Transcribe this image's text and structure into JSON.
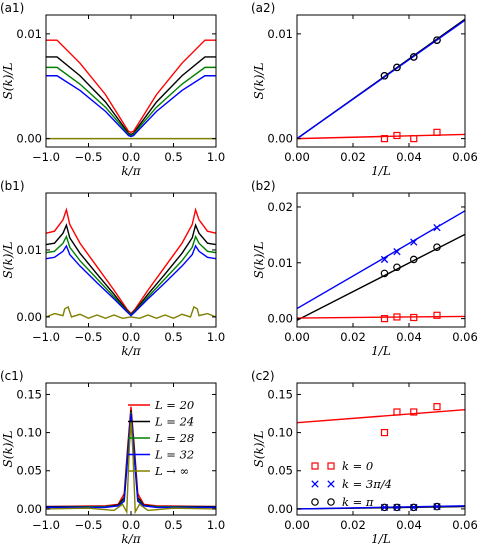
{
  "chart_data": [
    {
      "panel": "(a1)",
      "type": "line",
      "xlabel": "k/π",
      "ylabel": "S(k)/L",
      "xlim": [
        -1.0,
        1.0
      ],
      "ylim": [
        -0.0008,
        0.0118
      ],
      "xticks": [
        -1.0,
        -0.5,
        0.0,
        0.5,
        1.0
      ],
      "xticklabels": [
        "−1.0",
        "−0.5",
        "0.0",
        "0.5",
        "1.0"
      ],
      "yticks": [
        0.0,
        0.01
      ],
      "yticklabels": [
        "0.00",
        "0.01"
      ],
      "series": [
        {
          "color": "#ff0000",
          "x": [
            -1.0,
            -0.87,
            -0.6,
            -0.3,
            -0.1,
            -0.03,
            0.0,
            0.03,
            0.1,
            0.3,
            0.6,
            0.87,
            1.0
          ],
          "y": [
            0.0094,
            0.0094,
            0.0072,
            0.0042,
            0.0016,
            0.0007,
            0.0006,
            0.0007,
            0.0016,
            0.0042,
            0.0072,
            0.0094,
            0.0094
          ]
        },
        {
          "color": "#000000",
          "x": [
            -1.0,
            -0.87,
            -0.6,
            -0.3,
            -0.1,
            -0.03,
            0.0,
            0.03,
            0.1,
            0.3,
            0.6,
            0.87,
            1.0
          ],
          "y": [
            0.0078,
            0.0078,
            0.006,
            0.0035,
            0.0013,
            0.0005,
            0.0004,
            0.0005,
            0.0013,
            0.0035,
            0.006,
            0.0078,
            0.0078
          ]
        },
        {
          "color": "#008000",
          "x": [
            -1.0,
            -0.87,
            -0.6,
            -0.3,
            -0.1,
            -0.03,
            0.0,
            0.03,
            0.1,
            0.3,
            0.6,
            0.87,
            1.0
          ],
          "y": [
            0.0068,
            0.0068,
            0.0052,
            0.003,
            0.0011,
            0.0004,
            0.0003,
            0.0004,
            0.0011,
            0.003,
            0.0052,
            0.0068,
            0.0068
          ]
        },
        {
          "color": "#0000ff",
          "x": [
            -1.0,
            -0.87,
            -0.6,
            -0.3,
            -0.1,
            -0.03,
            0.0,
            0.03,
            0.1,
            0.3,
            0.6,
            0.87,
            1.0
          ],
          "y": [
            0.006,
            0.006,
            0.0046,
            0.0026,
            0.0009,
            0.0003,
            0.0002,
            0.0003,
            0.0009,
            0.0026,
            0.0046,
            0.006,
            0.006
          ]
        },
        {
          "color": "#808000",
          "x": [
            -1.0,
            1.0
          ],
          "y": [
            0.0,
            0.0
          ]
        }
      ]
    },
    {
      "panel": "(a2)",
      "type": "scatter",
      "xlabel": "1/L",
      "ylabel": "S(k)/L",
      "xlim": [
        0.0,
        0.06
      ],
      "ylim": [
        -0.0008,
        0.0118
      ],
      "xticks": [
        0.0,
        0.02,
        0.04,
        0.06
      ],
      "xticklabels": [
        "0.00",
        "0.02",
        "0.04",
        "0.06"
      ],
      "yticks": [
        0.0,
        0.01
      ],
      "yticklabels": [
        "0.00",
        "0.01"
      ],
      "lines": [
        {
          "color": "#000000",
          "x": [
            0.0,
            0.06
          ],
          "y": [
            0.0,
            0.0114
          ]
        },
        {
          "color": "#0000ff",
          "x": [
            0.0,
            0.06
          ],
          "y": [
            0.0,
            0.0113
          ]
        },
        {
          "color": "#ff0000",
          "x": [
            0.0,
            0.06
          ],
          "y": [
            0.0,
            0.0004
          ]
        }
      ],
      "markers": [
        {
          "shape": "circle",
          "color": "#0000ff",
          "x": [
            0.03125,
            0.0357,
            0.0417,
            0.05
          ],
          "y": [
            0.006,
            0.0068,
            0.0078,
            0.0094
          ]
        },
        {
          "shape": "circle",
          "color": "#000000",
          "x": [
            0.03125,
            0.0357,
            0.0417,
            0.05
          ],
          "y": [
            0.006,
            0.0068,
            0.0078,
            0.0094
          ]
        },
        {
          "shape": "square",
          "color": "#ff0000",
          "x": [
            0.03125,
            0.0357,
            0.0417,
            0.05
          ],
          "y": [
            0.0,
            0.0003,
            0.0,
            0.0006
          ]
        }
      ]
    },
    {
      "panel": "(b1)",
      "type": "line",
      "xlabel": "k/π",
      "ylabel": "S(k)/L",
      "xlim": [
        -1.0,
        1.0
      ],
      "ylim": [
        -0.0015,
        0.0185
      ],
      "xticks": [
        -1.0,
        -0.5,
        0.0,
        0.5,
        1.0
      ],
      "xticklabels": [
        "−1.0",
        "−0.5",
        "0.0",
        "0.5",
        "1.0"
      ],
      "yticks": [
        0.0,
        0.01
      ],
      "yticklabels": [
        "0.00",
        "0.01"
      ],
      "series": [
        {
          "color": "#ff0000",
          "x": [
            -1.0,
            -0.9,
            -0.8,
            -0.76,
            -0.72,
            -0.6,
            -0.4,
            -0.2,
            -0.05,
            0.0,
            0.05,
            0.2,
            0.4,
            0.6,
            0.72,
            0.76,
            0.8,
            0.9,
            1.0
          ],
          "y": [
            0.0125,
            0.0128,
            0.0145,
            0.016,
            0.0138,
            0.011,
            0.0075,
            0.004,
            0.0012,
            0.0005,
            0.0012,
            0.004,
            0.0075,
            0.011,
            0.0138,
            0.016,
            0.0145,
            0.0128,
            0.0125
          ]
        },
        {
          "color": "#000000",
          "x": [
            -1.0,
            -0.9,
            -0.8,
            -0.76,
            -0.72,
            -0.6,
            -0.4,
            -0.2,
            -0.05,
            0.0,
            0.05,
            0.2,
            0.4,
            0.6,
            0.72,
            0.76,
            0.8,
            0.9,
            1.0
          ],
          "y": [
            0.0108,
            0.011,
            0.0125,
            0.0137,
            0.0118,
            0.0095,
            0.0064,
            0.0034,
            0.001,
            0.0004,
            0.001,
            0.0034,
            0.0064,
            0.0095,
            0.0118,
            0.0137,
            0.0125,
            0.011,
            0.0108
          ]
        },
        {
          "color": "#008000",
          "x": [
            -1.0,
            -0.9,
            -0.8,
            -0.76,
            -0.72,
            -0.6,
            -0.4,
            -0.2,
            -0.05,
            0.0,
            0.05,
            0.2,
            0.4,
            0.6,
            0.72,
            0.76,
            0.8,
            0.9,
            1.0
          ],
          "y": [
            0.0096,
            0.0098,
            0.011,
            0.012,
            0.0104,
            0.0084,
            0.0057,
            0.003,
            0.0009,
            0.0003,
            0.0009,
            0.003,
            0.0057,
            0.0084,
            0.0104,
            0.012,
            0.011,
            0.0098,
            0.0096
          ]
        },
        {
          "color": "#0000ff",
          "x": [
            -1.0,
            -0.9,
            -0.8,
            -0.76,
            -0.72,
            -0.6,
            -0.4,
            -0.2,
            -0.05,
            0.0,
            0.05,
            0.2,
            0.4,
            0.6,
            0.72,
            0.76,
            0.8,
            0.9,
            1.0
          ],
          "y": [
            0.0087,
            0.0089,
            0.0098,
            0.0106,
            0.0093,
            0.0076,
            0.0051,
            0.0027,
            0.0008,
            0.0002,
            0.0008,
            0.0027,
            0.0051,
            0.0076,
            0.0093,
            0.0106,
            0.0098,
            0.0089,
            0.0087
          ]
        },
        {
          "color": "#808000",
          "x": [
            -1.0,
            -0.9,
            -0.8,
            -0.78,
            -0.74,
            -0.7,
            -0.6,
            -0.5,
            -0.4,
            -0.3,
            -0.2,
            -0.1,
            0.0,
            0.1,
            0.2,
            0.3,
            0.4,
            0.5,
            0.6,
            0.7,
            0.74,
            0.78,
            0.8,
            0.9,
            1.0
          ],
          "y": [
            0.0,
            0.0005,
            0.0002,
            0.0012,
            0.0015,
            0.0,
            0.0004,
            -0.0002,
            0.0003,
            -0.0002,
            0.0003,
            -0.0002,
            0.0,
            -0.0002,
            0.0003,
            -0.0002,
            0.0003,
            -0.0002,
            0.0004,
            0.0,
            0.0015,
            0.0012,
            0.0002,
            0.0005,
            0.0
          ]
        }
      ]
    },
    {
      "panel": "(b2)",
      "type": "scatter",
      "xlabel": "1/L",
      "ylabel": "S(k)/L",
      "xlim": [
        0.0,
        0.06
      ],
      "ylim": [
        -0.0015,
        0.0225
      ],
      "xticks": [
        0.0,
        0.02,
        0.04,
        0.06
      ],
      "xticklabels": [
        "0.00",
        "0.02",
        "0.04",
        "0.06"
      ],
      "yticks": [
        0.0,
        0.01,
        0.02
      ],
      "yticklabels": [
        "0.00",
        "0.01",
        "0.02"
      ],
      "lines": [
        {
          "color": "#0000ff",
          "x": [
            0.0,
            0.06
          ],
          "y": [
            0.0018,
            0.0193
          ]
        },
        {
          "color": "#000000",
          "x": [
            0.0,
            0.06
          ],
          "y": [
            -0.0003,
            0.0151
          ]
        },
        {
          "color": "#ff0000",
          "x": [
            0.0,
            0.06
          ],
          "y": [
            0.0001,
            0.0004
          ]
        }
      ],
      "markers": [
        {
          "shape": "x",
          "color": "#0000ff",
          "x": [
            0.03125,
            0.0357,
            0.0417,
            0.05
          ],
          "y": [
            0.0106,
            0.012,
            0.0137,
            0.0163
          ]
        },
        {
          "shape": "circle",
          "color": "#000000",
          "x": [
            0.03125,
            0.0357,
            0.0417,
            0.05
          ],
          "y": [
            0.0081,
            0.0092,
            0.0106,
            0.0128
          ]
        },
        {
          "shape": "square",
          "color": "#ff0000",
          "x": [
            0.03125,
            0.0357,
            0.0417,
            0.05
          ],
          "y": [
            0.0,
            0.0003,
            0.0002,
            0.0006
          ]
        }
      ]
    },
    {
      "panel": "(c1)",
      "type": "line",
      "xlabel": "k/π",
      "ylabel": "S(k)/L",
      "xlim": [
        -1.0,
        1.0
      ],
      "ylim": [
        -0.008,
        0.165
      ],
      "xticks": [
        -1.0,
        -0.5,
        0.0,
        0.5,
        1.0
      ],
      "xticklabels": [
        "−1.0",
        "−0.5",
        "0.0",
        "0.5",
        "1.0"
      ],
      "yticks": [
        0.0,
        0.05,
        0.1,
        0.15
      ],
      "yticklabels": [
        "0.00",
        "0.05",
        "0.10",
        "0.15"
      ],
      "legend": {
        "position": "right",
        "entries": [
          "L = 20",
          "L = 24",
          "L = 28",
          "L = 32",
          "L → ∞"
        ]
      },
      "series": [
        {
          "name": "L = 20",
          "color": "#ff0000",
          "x": [
            -1.0,
            -0.3,
            -0.15,
            -0.08,
            -0.04,
            0.0,
            0.04,
            0.08,
            0.15,
            0.3,
            1.0
          ],
          "y": [
            0.003,
            0.004,
            0.006,
            0.02,
            0.08,
            0.134,
            0.08,
            0.02,
            0.006,
            0.004,
            0.003
          ]
        },
        {
          "name": "L = 24",
          "color": "#000000",
          "x": [
            -1.0,
            -0.3,
            -0.15,
            -0.08,
            -0.04,
            0.0,
            0.04,
            0.08,
            0.15,
            0.3,
            1.0
          ],
          "y": [
            0.003,
            0.003,
            0.005,
            0.015,
            0.075,
            0.129,
            0.075,
            0.015,
            0.005,
            0.003,
            0.003
          ]
        },
        {
          "name": "L = 28",
          "color": "#008000",
          "x": [
            -1.0,
            -0.3,
            -0.15,
            -0.08,
            -0.04,
            0.0,
            0.04,
            0.08,
            0.15,
            0.3,
            1.0
          ],
          "y": [
            0.002,
            0.003,
            0.004,
            0.012,
            0.07,
            0.127,
            0.07,
            0.012,
            0.004,
            0.003,
            0.002
          ]
        },
        {
          "name": "L = 32",
          "color": "#0000ff",
          "x": [
            -1.0,
            -0.3,
            -0.15,
            -0.08,
            -0.04,
            0.0,
            0.04,
            0.08,
            0.15,
            0.3,
            1.0
          ],
          "y": [
            0.002,
            0.002,
            0.004,
            0.01,
            0.065,
            0.125,
            0.065,
            0.01,
            0.004,
            0.002,
            0.002
          ]
        },
        {
          "name": "L → ∞",
          "color": "#808000",
          "x": [
            -1.0,
            -0.5,
            -0.2,
            -0.1,
            -0.05,
            -0.02,
            0.0,
            0.02,
            0.05,
            0.1,
            0.2,
            0.5,
            1.0
          ],
          "y": [
            0.0,
            0.001,
            -0.002,
            0.006,
            -0.004,
            0.08,
            0.115,
            0.08,
            -0.004,
            0.006,
            -0.002,
            0.001,
            0.0
          ]
        }
      ]
    },
    {
      "panel": "(c2)",
      "type": "scatter",
      "xlabel": "1/L",
      "ylabel": "S(k)/L",
      "xlim": [
        0.0,
        0.06
      ],
      "ylim": [
        -0.008,
        0.165
      ],
      "xticks": [
        0.0,
        0.02,
        0.04,
        0.06
      ],
      "xticklabels": [
        "0.00",
        "0.02",
        "0.04",
        "0.06"
      ],
      "yticks": [
        0.0,
        0.05,
        0.1,
        0.15
      ],
      "yticklabels": [
        "0.00",
        "0.05",
        "0.10",
        "0.15"
      ],
      "legend": {
        "position": "lower-left",
        "entries": [
          "k = 0",
          "k = 3π/4",
          "k = π"
        ]
      },
      "lines": [
        {
          "color": "#ff0000",
          "x": [
            0.0,
            0.06
          ],
          "y": [
            0.113,
            0.13
          ]
        },
        {
          "color": "#000000",
          "x": [
            0.0,
            0.06
          ],
          "y": [
            0.0,
            0.003
          ]
        },
        {
          "color": "#0000ff",
          "x": [
            0.0,
            0.06
          ],
          "y": [
            0.0,
            0.004
          ]
        }
      ],
      "markers": [
        {
          "name": "k = 0",
          "shape": "square",
          "color": "#ff0000",
          "x": [
            0.03125,
            0.0357,
            0.0417,
            0.05
          ],
          "y": [
            0.1,
            0.127,
            0.127,
            0.134
          ]
        },
        {
          "name": "k = 3π/4",
          "shape": "x",
          "color": "#0000ff",
          "x": [
            0.03125,
            0.0357,
            0.0417,
            0.05
          ],
          "y": [
            0.002,
            0.002,
            0.002,
            0.003
          ]
        },
        {
          "name": "k = π",
          "shape": "circle",
          "color": "#000000",
          "x": [
            0.03125,
            0.0357,
            0.0417,
            0.05
          ],
          "y": [
            0.002,
            0.002,
            0.002,
            0.003
          ]
        }
      ]
    }
  ]
}
